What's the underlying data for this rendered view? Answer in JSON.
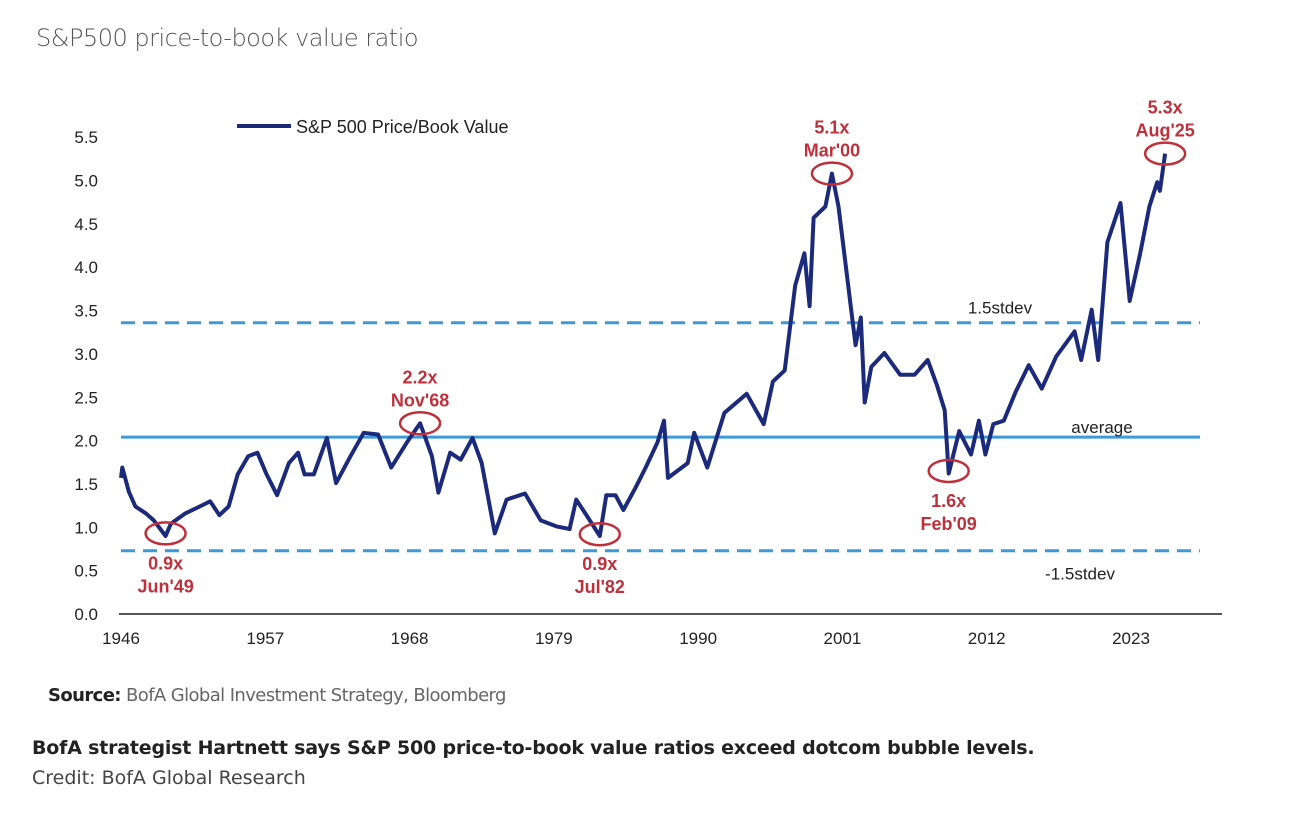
{
  "title": "S&P500 price-to-book value ratio",
  "source_label": "Source:",
  "source_text": "BofA Global Investment Strategy, Bloomberg",
  "caption": "BofA strategist Hartnett says S&P 500 price-to-book value ratios exceed dotcom bubble levels.",
  "credit": "Credit: BofA Global Research",
  "colors": {
    "series": "#1b2a7a",
    "reference": "#3d9ad6",
    "annotation": "#c0303a",
    "axis": "#555555"
  },
  "chart_data": {
    "type": "line",
    "title": "",
    "xlabel": "",
    "ylabel": "",
    "xlim": [
      1946,
      2026
    ],
    "ylim": [
      0,
      5.5
    ],
    "x_ticks": [
      1946,
      1957,
      1968,
      1979,
      1990,
      2001,
      2012,
      2023
    ],
    "y_ticks": [
      "0.0",
      "0.5",
      "1.0",
      "1.5",
      "2.0",
      "2.5",
      "3.0",
      "3.5",
      "4.0",
      "4.5",
      "5.0",
      "5.5"
    ],
    "grid": false,
    "legend": {
      "position": "top-left",
      "entries": [
        "S&P 500 Price/Book Value"
      ]
    },
    "series": [
      {
        "name": "S&P 500 Price/Book Value",
        "x": [
          1946.0,
          1946.1,
          1946.6,
          1947.1,
          1947.9,
          1948.5,
          1949.4,
          1949.8,
          1950.9,
          1952.0,
          1952.8,
          1953.5,
          1954.2,
          1954.9,
          1955.7,
          1956.4,
          1957.1,
          1957.9,
          1958.8,
          1959.5,
          1960.0,
          1960.7,
          1961.7,
          1962.4,
          1963.5,
          1964.5,
          1965.6,
          1966.6,
          1967.8,
          1968.8,
          1969.7,
          1970.2,
          1971.1,
          1971.9,
          1972.8,
          1973.5,
          1974.5,
          1975.4,
          1976.8,
          1978.0,
          1979.2,
          1980.2,
          1980.7,
          1981.4,
          1982.5,
          1983.0,
          1983.7,
          1984.3,
          1985.2,
          1986.0,
          1986.9,
          1987.4,
          1987.7,
          1989.2,
          1989.7,
          1990.7,
          1992.0,
          1993.7,
          1995.0,
          1995.7,
          1996.6,
          1997.4,
          1998.1,
          1998.5,
          1998.8,
          1999.7,
          2000.2,
          2000.7,
          2001.7,
          2002.0,
          2002.4,
          2002.7,
          2003.2,
          2004.2,
          2005.4,
          2006.5,
          2007.5,
          2008.2,
          2008.8,
          2009.1,
          2009.9,
          2010.8,
          2011.4,
          2011.9,
          2012.5,
          2013.3,
          2014.2,
          2015.2,
          2016.2,
          2017.3,
          2018.7,
          2019.2,
          2020.0,
          2020.5,
          2021.2,
          2022.2,
          2022.9,
          2023.7,
          2024.4,
          2025.0,
          2025.2,
          2025.6
        ],
        "values": [
          1.57,
          1.69,
          1.41,
          1.24,
          1.16,
          1.08,
          0.9,
          1.04,
          1.16,
          1.24,
          1.3,
          1.14,
          1.24,
          1.61,
          1.82,
          1.86,
          1.61,
          1.37,
          1.74,
          1.86,
          1.61,
          1.61,
          2.03,
          1.51,
          1.82,
          2.09,
          2.07,
          1.69,
          1.98,
          2.2,
          1.82,
          1.4,
          1.86,
          1.78,
          2.03,
          1.74,
          0.93,
          1.32,
          1.39,
          1.08,
          1.01,
          0.98,
          1.32,
          1.16,
          0.9,
          1.37,
          1.37,
          1.2,
          1.45,
          1.69,
          1.98,
          2.23,
          1.57,
          1.74,
          2.09,
          1.69,
          2.32,
          2.54,
          2.19,
          2.68,
          2.81,
          3.79,
          4.16,
          3.55,
          4.57,
          4.7,
          5.08,
          4.7,
          3.47,
          3.1,
          3.42,
          2.44,
          2.85,
          3.01,
          2.76,
          2.76,
          2.93,
          2.64,
          2.35,
          1.62,
          2.11,
          1.84,
          2.23,
          1.84,
          2.19,
          2.23,
          2.56,
          2.87,
          2.6,
          2.97,
          3.26,
          2.93,
          3.51,
          2.93,
          4.29,
          4.74,
          3.61,
          4.16,
          4.7,
          4.98,
          4.88,
          5.31
        ]
      }
    ],
    "reference_lines": [
      {
        "label": "1.5stdev",
        "value": 3.36,
        "style": "dashed"
      },
      {
        "label": "average",
        "value": 2.04,
        "style": "solid"
      },
      {
        "label": "-1.5stdev",
        "value": 0.73,
        "style": "dashed"
      }
    ],
    "annotations": [
      {
        "value_label": "0.9x",
        "date_label": "Jun'49",
        "x": 1949.4,
        "y": 0.93,
        "placement": "below"
      },
      {
        "value_label": "2.2x",
        "date_label": "Nov'68",
        "x": 1968.8,
        "y": 2.2,
        "placement": "above"
      },
      {
        "value_label": "0.9x",
        "date_label": "Jul'82",
        "x": 1982.5,
        "y": 0.92,
        "placement": "below"
      },
      {
        "value_label": "5.1x",
        "date_label": "Mar'00",
        "x": 2000.2,
        "y": 5.08,
        "placement": "above"
      },
      {
        "value_label": "1.6x",
        "date_label": "Feb'09",
        "x": 2009.1,
        "y": 1.65,
        "placement": "below"
      },
      {
        "value_label": "5.3x",
        "date_label": "Aug'25",
        "x": 2025.6,
        "y": 5.31,
        "placement": "above"
      }
    ]
  }
}
